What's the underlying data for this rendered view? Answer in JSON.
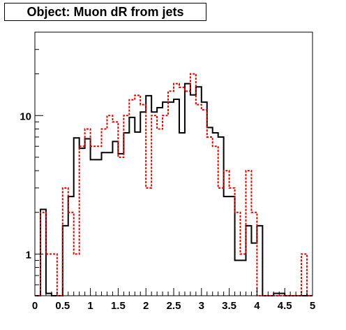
{
  "chart_data": {
    "type": "line",
    "title": "Object: Muon dR from jets",
    "xlabel": "",
    "ylabel": "",
    "xlim": [
      0,
      5
    ],
    "ylim": [
      0.5,
      40
    ],
    "y_scale": "log",
    "grid": false,
    "bin_width": 0.1,
    "x_tick_labels": [
      "0",
      "0.5",
      "1",
      "1.5",
      "2",
      "2.5",
      "3",
      "3.5",
      "4",
      "4.5",
      "5"
    ],
    "x_tick_values": [
      0,
      0.5,
      1,
      1.5,
      2,
      2.5,
      3,
      3.5,
      4,
      4.5,
      5
    ],
    "y_tick_labels": [
      "1",
      "10"
    ],
    "y_tick_values": [
      1,
      10
    ],
    "series": [
      {
        "color": "#000000",
        "style": "solid-step",
        "values": [
          0.0,
          2.1,
          0.52,
          0.5,
          0.5,
          1.6,
          2.6,
          6.9,
          5.8,
          6.8,
          4.8,
          4.8,
          5.4,
          5.4,
          6.5,
          5.3,
          7.5,
          9.7,
          7.6,
          10.6,
          13.9,
          10.6,
          11.4,
          12.5,
          12.5,
          13.1,
          7.5,
          17.0,
          14.1,
          16.1,
          12.5,
          8.2,
          7.5,
          7.0,
          2.6,
          2.6,
          0.9,
          0.9,
          1.6,
          1.2,
          1.6,
          0.45,
          0.45,
          0.52,
          0.52,
          0.48,
          0.48,
          0.45,
          0.45,
          0.5
        ]
      },
      {
        "color": "#dd0000",
        "style": "dotted-step",
        "values": [
          0.0,
          2.0,
          1.0,
          1.0,
          0.45,
          3.0,
          2.0,
          1.0,
          6.0,
          8.0,
          6.0,
          6.0,
          8.0,
          10.0,
          9.0,
          5.0,
          10.0,
          13.0,
          14.0,
          12.0,
          3.0,
          10.0,
          8.0,
          10.0,
          15.0,
          17.0,
          16.0,
          15.0,
          20.0,
          12.0,
          11.0,
          7.0,
          6.0,
          3.0,
          4.0,
          3.0,
          2.0,
          1.0,
          4.0,
          2.0,
          0.5,
          0.5,
          0.5,
          0.5,
          0.5,
          0.45,
          0.45,
          0.5,
          1.0,
          0.5
        ]
      }
    ]
  }
}
